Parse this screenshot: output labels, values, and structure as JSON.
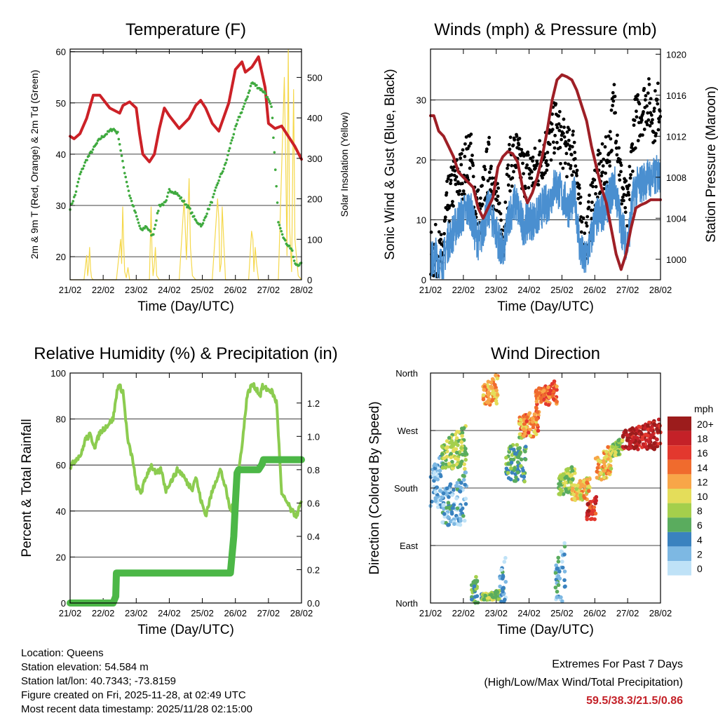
{
  "days": [
    "21/02",
    "22/02",
    "23/02",
    "24/02",
    "25/02",
    "26/02",
    "27/02",
    "28/02"
  ],
  "chart_data": [
    {
      "type": "line",
      "title": "Temperature (F)",
      "xlabel": "Time (Day/UTC)",
      "ylabel_left": "2m & 9m T (Red, Orange) & 2m Td (Green)",
      "ylabel_right": "Solar Insolation (Yellow)",
      "ylim": [
        15.5,
        60.5
      ],
      "yticks": [
        20,
        30,
        40,
        50,
        60
      ],
      "y2lim": [
        0,
        570
      ],
      "y2ticks": [
        0,
        100,
        200,
        300,
        400,
        500
      ],
      "xlim": [
        0,
        7
      ],
      "series": [
        {
          "name": "2m T",
          "color": "#cc2127",
          "x": [
            0,
            0.12,
            0.3,
            0.5,
            0.7,
            0.9,
            1.2,
            1.5,
            1.6,
            1.8,
            2.0,
            2.1,
            2.2,
            2.4,
            2.55,
            2.7,
            2.85,
            3.0,
            3.3,
            3.6,
            3.8,
            3.95,
            4.1,
            4.3,
            4.5,
            4.8,
            5.0,
            5.2,
            5.3,
            5.5,
            5.7,
            5.9,
            6.0,
            6.2,
            6.4,
            6.6,
            6.8,
            7.0
          ],
          "values": [
            43.5,
            43,
            44,
            47,
            51.5,
            51.5,
            49,
            48,
            49.5,
            50.2,
            49,
            44,
            40,
            38.5,
            40,
            45,
            49,
            47.5,
            45,
            47,
            49.5,
            50.5,
            49,
            46,
            44.5,
            50,
            56.5,
            58,
            56,
            57,
            59,
            53,
            46,
            45,
            45.5,
            43.5,
            41.5,
            39
          ]
        },
        {
          "name": "2m Td",
          "color": "#3faa3f",
          "x": [
            0,
            0.15,
            0.3,
            0.5,
            0.7,
            0.9,
            1.1,
            1.3,
            1.45,
            1.6,
            1.8,
            2.0,
            2.15,
            2.3,
            2.5,
            2.7,
            2.9,
            3.0,
            3.2,
            3.4,
            3.6,
            3.8,
            4.0,
            4.1,
            4.3,
            4.5,
            4.7,
            4.9,
            5.1,
            5.3,
            5.5,
            5.7,
            5.9,
            6.1,
            6.3,
            6.5,
            6.7,
            6.8,
            7.0
          ],
          "values": [
            29.5,
            32,
            36,
            39,
            41,
            43,
            44,
            45,
            44,
            38,
            32,
            28,
            25,
            26,
            24,
            30,
            30.5,
            33,
            32.5,
            31,
            29.5,
            27,
            26,
            28,
            31,
            35,
            38,
            43,
            47,
            50,
            54,
            53,
            52,
            49,
            27,
            23,
            21.5,
            18.5,
            18.5
          ]
        },
        {
          "name": "Solar Insolation",
          "axis": "right",
          "color": "#f5d84c",
          "x": [
            0,
            0.42,
            0.5,
            0.53,
            0.56,
            0.59,
            0.62,
            0.65,
            0.7,
            1.4,
            1.53,
            1.56,
            1.59,
            1.62,
            1.65,
            1.7,
            1.75,
            1.8,
            2.4,
            2.45,
            2.48,
            2.51,
            2.54,
            2.58,
            2.62,
            2.7,
            3.3,
            3.45,
            3.52,
            3.56,
            3.6,
            3.64,
            3.7,
            3.8,
            4.3,
            4.46,
            4.5,
            4.53,
            4.57,
            4.6,
            4.7,
            5.4,
            5.49,
            5.53,
            5.56,
            5.6,
            5.64,
            5.7,
            6.3,
            6.48,
            6.52,
            6.56,
            6.6,
            6.64,
            6.7,
            6.76,
            6.8,
            6.9,
            7.0
          ],
          "values": [
            0,
            0,
            60,
            10,
            30,
            80,
            25,
            5,
            0,
            0,
            100,
            40,
            180,
            90,
            20,
            5,
            30,
            0,
            0,
            180,
            60,
            10,
            30,
            80,
            10,
            0,
            0,
            200,
            50,
            150,
            250,
            80,
            10,
            0,
            0,
            200,
            150,
            20,
            40,
            180,
            0,
            0,
            120,
            100,
            20,
            80,
            40,
            0,
            0,
            500,
            300,
            60,
            570,
            130,
            20,
            470,
            100,
            10,
            0
          ]
        }
      ]
    },
    {
      "type": "scatter",
      "title": "Winds (mph) & Pressure (mb)",
      "xlabel": "Time (Day/UTC)",
      "ylabel_left": "Sonic Wind & Gust (Blue, Black)",
      "ylabel_right": "Station Pressure (Maroon)",
      "ylim": [
        0,
        38.5
      ],
      "yticks": [
        0,
        10,
        20,
        30
      ],
      "y2lim": [
        998,
        1020.5
      ],
      "y2ticks": [
        1000,
        1004,
        1008,
        1012,
        1016,
        1020
      ],
      "xlim": [
        0,
        7
      ],
      "series": [
        {
          "name": "Sonic Wind",
          "color": "#4a8fd0",
          "x": [
            0,
            0.2,
            0.35,
            0.5,
            0.7,
            0.85,
            1.0,
            1.2,
            1.35,
            1.5,
            1.65,
            1.8,
            2.0,
            2.2,
            2.4,
            2.6,
            2.8,
            3.0,
            3.2,
            3.4,
            3.6,
            3.8,
            4.0,
            4.2,
            4.4,
            4.55,
            4.7,
            4.9,
            5.0,
            5.2,
            5.4,
            5.6,
            5.8,
            6.0,
            6.2,
            6.4,
            6.6,
            6.8,
            7.0
          ],
          "values": [
            3,
            4,
            2,
            6,
            8,
            10,
            11,
            12,
            8,
            6,
            10,
            12,
            8,
            4,
            11,
            13,
            9,
            10,
            10,
            12,
            13,
            16,
            14,
            12,
            14,
            5,
            3,
            7,
            10,
            11,
            13,
            16,
            9,
            6,
            15,
            16,
            17,
            17,
            18
          ]
        },
        {
          "name": "Gust",
          "color": "#000000",
          "x": [
            0,
            0.2,
            0.35,
            0.5,
            0.7,
            0.85,
            1.0,
            1.2,
            1.35,
            1.5,
            1.65,
            1.8,
            2.0,
            2.2,
            2.4,
            2.6,
            2.8,
            3.0,
            3.2,
            3.4,
            3.6,
            3.8,
            4.0,
            4.2,
            4.4,
            4.55,
            4.7,
            4.9,
            5.0,
            5.2,
            5.4,
            5.6,
            5.8,
            6.0,
            6.2,
            6.4,
            6.6,
            6.8,
            7.0
          ],
          "values": [
            4,
            5,
            3,
            12,
            16,
            17,
            18,
            22,
            14,
            10,
            16,
            20,
            13,
            7,
            19,
            21,
            18,
            18,
            18,
            21,
            22,
            26,
            23,
            21,
            22,
            10,
            6,
            12,
            16,
            18,
            20,
            30,
            16,
            11,
            26,
            28,
            30,
            27,
            30
          ]
        },
        {
          "name": "Station Pressure",
          "axis": "right",
          "color": "#9e1f26",
          "x": [
            0,
            0.1,
            0.25,
            0.4,
            0.55,
            0.7,
            0.85,
            1.0,
            1.15,
            1.3,
            1.45,
            1.6,
            1.75,
            1.9,
            2.05,
            2.2,
            2.35,
            2.5,
            2.65,
            2.8,
            2.95,
            3.1,
            3.25,
            3.4,
            3.55,
            3.7,
            3.85,
            4.0,
            4.15,
            4.3,
            4.45,
            4.6,
            4.75,
            4.9,
            5.05,
            5.2,
            5.35,
            5.5,
            5.65,
            5.8,
            5.95,
            6.1,
            6.25,
            6.4,
            6.55,
            6.7,
            6.85,
            7.0
          ],
          "values": [
            1014,
            1014,
            1012.5,
            1012,
            1011,
            1010,
            1008.5,
            1008,
            1007.5,
            1007,
            1005,
            1004,
            1005,
            1006,
            1009,
            1010,
            1010.5,
            1010.3,
            1009.5,
            1007,
            1005.5,
            1006.5,
            1008,
            1010,
            1012.5,
            1015.5,
            1017.5,
            1018,
            1017.8,
            1017.5,
            1016.5,
            1015,
            1013.5,
            1011,
            1009,
            1007,
            1005.5,
            1003,
            1000.5,
            999,
            1000.5,
            1003,
            1005,
            1005.3,
            1005.5,
            1005.8,
            1005.8,
            1005.8
          ]
        }
      ]
    },
    {
      "type": "line",
      "title": "Relative Humidity (%) & Precipitation (in)",
      "xlabel": "Time (Day/UTC)",
      "ylabel_left": "Percent & Total Rainfall",
      "ylim": [
        0,
        100
      ],
      "yticks": [
        0,
        20,
        40,
        60,
        80,
        100
      ],
      "y2lim": [
        0,
        1.38
      ],
      "y2ticks": [
        0.0,
        0.2,
        0.4,
        0.6,
        0.8,
        1.0,
        1.2
      ],
      "xlim": [
        0,
        7
      ],
      "series": [
        {
          "name": "Relative Humidity",
          "color": "#8ccc50",
          "x": [
            0,
            0.2,
            0.35,
            0.45,
            0.6,
            0.75,
            0.9,
            1.1,
            1.3,
            1.45,
            1.6,
            1.75,
            1.9,
            2.0,
            2.15,
            2.3,
            2.45,
            2.6,
            2.75,
            2.9,
            3.0,
            3.1,
            3.25,
            3.4,
            3.55,
            3.7,
            3.8,
            3.95,
            4.1,
            4.25,
            4.4,
            4.55,
            4.7,
            4.85,
            4.95,
            5.1,
            5.25,
            5.35,
            5.5,
            5.65,
            5.75,
            5.8,
            5.95,
            6.1,
            6.25,
            6.4,
            6.55,
            6.7,
            6.85,
            7.0
          ],
          "values": [
            59,
            63,
            65,
            71,
            73,
            68,
            74,
            77,
            80,
            95,
            92,
            70,
            62,
            51,
            48,
            55,
            60,
            56,
            58,
            49,
            52,
            54,
            58,
            56,
            52,
            50,
            55,
            45,
            38,
            46,
            53,
            58,
            50,
            40,
            43,
            57,
            75,
            90,
            95,
            93,
            90,
            94,
            93,
            92,
            87,
            47,
            44,
            40,
            38,
            44
          ]
        },
        {
          "name": "Total Precipitation",
          "axis": "right",
          "color": "#4cb747",
          "x": [
            0,
            1.3,
            1.38,
            1.4,
            2.0,
            3.0,
            4.0,
            4.85,
            4.95,
            5.0,
            5.05,
            5.1,
            5.5,
            5.7,
            5.8,
            5.85,
            6.0,
            6.5,
            7.0
          ],
          "values": [
            0,
            0,
            0.04,
            0.18,
            0.18,
            0.18,
            0.18,
            0.18,
            0.4,
            0.6,
            0.78,
            0.8,
            0.8,
            0.8,
            0.83,
            0.86,
            0.86,
            0.86,
            0.86
          ]
        }
      ]
    },
    {
      "type": "scatter",
      "title": "Wind Direction",
      "xlabel": "Time (Day/UTC)",
      "ylabel_left": "Direction (Colored By Speed)",
      "yticklabels": [
        "North",
        "East",
        "South",
        "West",
        "North"
      ],
      "ylim": [
        0,
        360
      ],
      "xlim": [
        0,
        7
      ],
      "colorbar_title": "mph",
      "colorbar_labels": [
        "20+",
        "18",
        "16",
        "14",
        "12",
        "10",
        "8",
        "6",
        "4",
        "2",
        "0"
      ],
      "colorbar_colors": [
        "#9c1c1c",
        "#c42128",
        "#e3382e",
        "#f06b2d",
        "#f8a648",
        "#e4dd5a",
        "#a4cf4c",
        "#5aac5e",
        "#3a82bf",
        "#7db8e3",
        "#bfe2f7"
      ],
      "clusters": [
        {
          "x0": 0,
          "x1": 0.35,
          "y0": 150,
          "y1": 240,
          "speed": 2
        },
        {
          "x0": 0.35,
          "x1": 1.1,
          "y0": 210,
          "y1": 280,
          "speed": 8
        },
        {
          "x0": 0.35,
          "x1": 1.1,
          "y0": 120,
          "y1": 210,
          "speed": 3
        },
        {
          "x0": 1.25,
          "x1": 1.45,
          "y0": 0,
          "y1": 50,
          "speed": 6
        },
        {
          "x0": 1.55,
          "x1": 2.1,
          "y0": 5,
          "y1": 20,
          "speed": 7
        },
        {
          "x0": 1.6,
          "x1": 2.05,
          "y0": 310,
          "y1": 360,
          "speed": 12
        },
        {
          "x0": 2.1,
          "x1": 2.3,
          "y0": 0,
          "y1": 75,
          "speed": 3
        },
        {
          "x0": 2.3,
          "x1": 2.9,
          "y0": 190,
          "y1": 270,
          "speed": 6
        },
        {
          "x0": 2.7,
          "x1": 3.3,
          "y0": 260,
          "y1": 310,
          "speed": 13
        },
        {
          "x0": 3.2,
          "x1": 3.85,
          "y0": 310,
          "y1": 350,
          "speed": 14
        },
        {
          "x0": 3.8,
          "x1": 4.1,
          "y0": 0,
          "y1": 100,
          "speed": 3
        },
        {
          "x0": 3.9,
          "x1": 4.4,
          "y0": 170,
          "y1": 220,
          "speed": 8
        },
        {
          "x0": 4.3,
          "x1": 4.85,
          "y0": 160,
          "y1": 200,
          "speed": 11
        },
        {
          "x0": 4.75,
          "x1": 5.05,
          "y0": 130,
          "y1": 170,
          "speed": 17
        },
        {
          "x0": 5.0,
          "x1": 5.5,
          "y0": 190,
          "y1": 250,
          "speed": 11
        },
        {
          "x0": 5.5,
          "x1": 5.85,
          "y0": 230,
          "y1": 260,
          "speed": 8
        },
        {
          "x0": 5.85,
          "x1": 7.0,
          "y0": 240,
          "y1": 290,
          "speed": 19
        }
      ]
    }
  ],
  "footer": {
    "location": "Location: Queens",
    "elevation": "Station elevation: 54.584 m",
    "latlon": "Station lat/lon: 40.7343; -73.8159",
    "created": "Figure created on Fri, 2025-11-28, at 02:49 UTC",
    "recent": "Most recent data timestamp: 2025/11/28 02:15:00",
    "extremes_title": "Extremes For Past 7 Days",
    "extremes_legend": "(High/Low/Max Wind/Total Precipitation)",
    "extremes_value": "59.5/38.3/21.5/0.86"
  }
}
